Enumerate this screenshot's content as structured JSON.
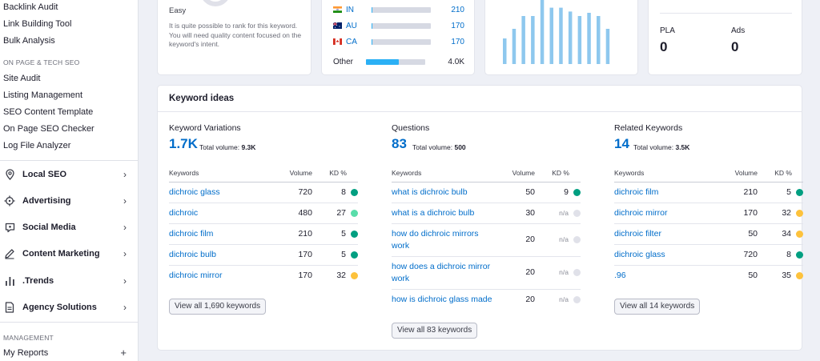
{
  "sidebar": {
    "top_links": [
      "Backlink Audit",
      "Link Building Tool",
      "Bulk Analysis"
    ],
    "section_onpage": "ON PAGE & TECH SEO",
    "onpage_links": [
      "Site Audit",
      "Listing Management",
      "SEO Content Template",
      "On Page SEO Checker",
      "Log File Analyzer"
    ],
    "groups": [
      {
        "label": "Local SEO",
        "icon": "location-pin-icon"
      },
      {
        "label": "Advertising",
        "icon": "crosshair-icon"
      },
      {
        "label": "Social Media",
        "icon": "chat-bubble-icon"
      },
      {
        "label": "Content Marketing",
        "icon": "pencil-icon"
      },
      {
        "label": ".Trends",
        "icon": "bar-chart-icon"
      },
      {
        "label": "Agency Solutions",
        "icon": "document-icon"
      }
    ],
    "section_management": "MANAGEMENT",
    "my_reports": "My Reports"
  },
  "kd_card": {
    "level": "Easy",
    "description": "It is quite possible to rank for this keyword. You will need quality content focused on the keyword's intent."
  },
  "countries": [
    {
      "code": "IN",
      "value": "210",
      "share": 0.02
    },
    {
      "code": "AU",
      "value": "170",
      "share": 0.02
    },
    {
      "code": "CA",
      "value": "170",
      "share": 0.02
    },
    {
      "code": "Other",
      "value": "4.0K",
      "share": 0.55
    }
  ],
  "trend": {
    "values": [
      0.4,
      0.55,
      0.75,
      0.75,
      1.0,
      0.88,
      0.88,
      0.82,
      0.75,
      0.8,
      0.75,
      0.55
    ]
  },
  "ads": {
    "pla_label": "PLA",
    "pla_value": "0",
    "ads_label": "Ads",
    "ads_value": "0"
  },
  "ideas": {
    "title": "Keyword ideas",
    "col_headers": {
      "keywords": "Keywords",
      "volume": "Volume",
      "kd": "KD %"
    },
    "variations": {
      "title": "Keyword Variations",
      "count": "1.7K",
      "total_label": "Total volume:",
      "total": "9.3K",
      "rows": [
        {
          "kw": "dichroic glass",
          "vol": "720",
          "kd": "8",
          "color": "#009f81"
        },
        {
          "kw": "dichroic",
          "vol": "480",
          "kd": "27",
          "color": "#59ddaa"
        },
        {
          "kw": "dichroic film",
          "vol": "210",
          "kd": "5",
          "color": "#009f81"
        },
        {
          "kw": "dichroic bulb",
          "vol": "170",
          "kd": "5",
          "color": "#009f81"
        },
        {
          "kw": "dichroic mirror",
          "vol": "170",
          "kd": "32",
          "color": "#fdc23c"
        }
      ],
      "view_all": "View all 1,690 keywords"
    },
    "questions": {
      "title": "Questions",
      "count": "83",
      "total_label": "Total volume:",
      "total": "500",
      "rows": [
        {
          "kw": "what is dichroic bulb",
          "vol": "50",
          "kd": "9",
          "color": "#009f81"
        },
        {
          "kw": "what is a dichroic bulb",
          "vol": "30",
          "kd": "n/a",
          "color": "#e0e1e9"
        },
        {
          "kw": "how do dichroic mirrors work",
          "vol": "20",
          "kd": "n/a",
          "color": "#e0e1e9"
        },
        {
          "kw": "how does a dichroic mirror work",
          "vol": "20",
          "kd": "n/a",
          "color": "#e0e1e9"
        },
        {
          "kw": "how is dichroic glass made",
          "vol": "20",
          "kd": "n/a",
          "color": "#e0e1e9"
        }
      ],
      "view_all": "View all 83 keywords"
    },
    "related": {
      "title": "Related Keywords",
      "count": "14",
      "total_label": "Total volume:",
      "total": "3.5K",
      "rows": [
        {
          "kw": "dichroic film",
          "vol": "210",
          "kd": "5",
          "color": "#009f81"
        },
        {
          "kw": "dichroic mirror",
          "vol": "170",
          "kd": "32",
          "color": "#fdc23c"
        },
        {
          "kw": "dichroic filter",
          "vol": "50",
          "kd": "34",
          "color": "#fdc23c"
        },
        {
          "kw": "dichroic glass",
          "vol": "720",
          "kd": "8",
          "color": "#009f81"
        },
        {
          "kw": ".96",
          "vol": "50",
          "kd": "35",
          "color": "#fdc23c"
        }
      ],
      "view_all": "View all 14 keywords"
    }
  }
}
